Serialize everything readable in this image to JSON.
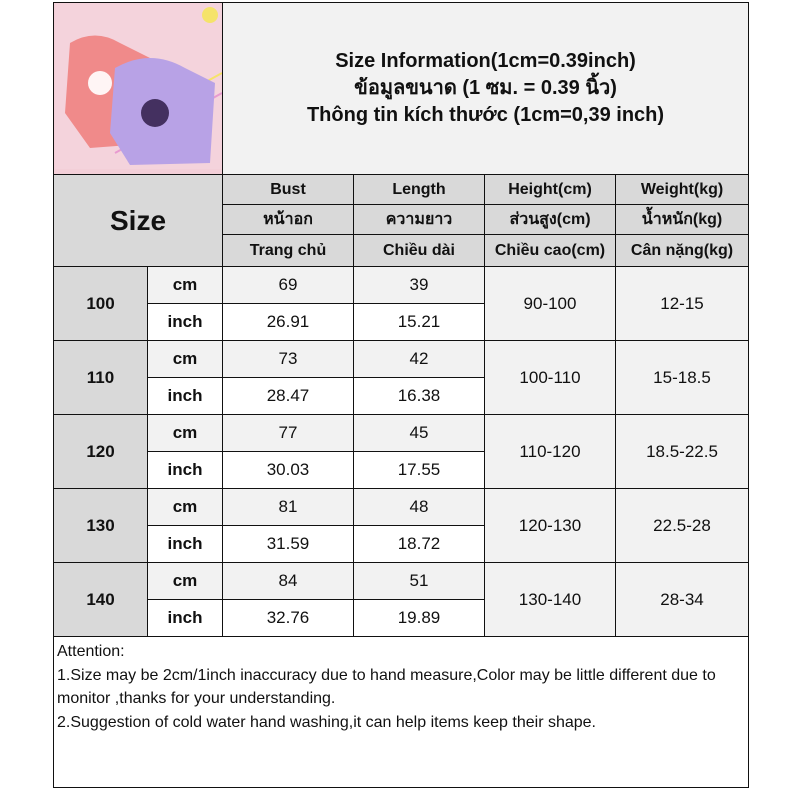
{
  "title": {
    "line1": "Size Information(1cm=0.39inch)",
    "line2": "ข้อมูลขนาด (1 ซม. = 0.39 นิ้ว)",
    "line3": "Thông tin kích thước (1cm=0,39 inch)"
  },
  "product_image": "pink and purple tie-dye kids sweatshirts with cartoon characters",
  "size_label": "Size",
  "columns": [
    {
      "en": "Bust",
      "th": "หน้าอก",
      "vi": "Trang chủ"
    },
    {
      "en": "Length",
      "th": "ความยาว",
      "vi": "Chiều dài"
    },
    {
      "en": "Height(cm)",
      "th": "ส่วนสูง(cm)",
      "vi": "Chiều cao(cm)"
    },
    {
      "en": "Weight(kg)",
      "th": "น้ำหนัก(kg)",
      "vi": "Cân nặng(kg)"
    }
  ],
  "units": {
    "cm": "cm",
    "inch": "inch"
  },
  "rows": [
    {
      "size": "100",
      "bust_cm": "69",
      "length_cm": "39",
      "bust_in": "26.91",
      "length_in": "15.21",
      "height": "90-100",
      "weight": "12-15"
    },
    {
      "size": "110",
      "bust_cm": "73",
      "length_cm": "42",
      "bust_in": "28.47",
      "length_in": "16.38",
      "height": "100-110",
      "weight": "15-18.5"
    },
    {
      "size": "120",
      "bust_cm": "77",
      "length_cm": "45",
      "bust_in": "30.03",
      "length_in": "17.55",
      "height": "110-120",
      "weight": "18.5-22.5"
    },
    {
      "size": "130",
      "bust_cm": "81",
      "length_cm": "48",
      "bust_in": "31.59",
      "length_in": "18.72",
      "height": "120-130",
      "weight": "22.5-28"
    },
    {
      "size": "140",
      "bust_cm": "84",
      "length_cm": "51",
      "bust_in": "32.76",
      "length_in": "19.89",
      "height": "130-140",
      "weight": "28-34"
    }
  ],
  "attention": {
    "heading": "Attention:",
    "note1": "1.Size may be 2cm/1inch inaccuracy due to hand measure,Color may be little different due to monitor ,thanks for your understanding.",
    "note2": "2.Suggestion of cold water hand washing,it can help items keep their shape."
  }
}
